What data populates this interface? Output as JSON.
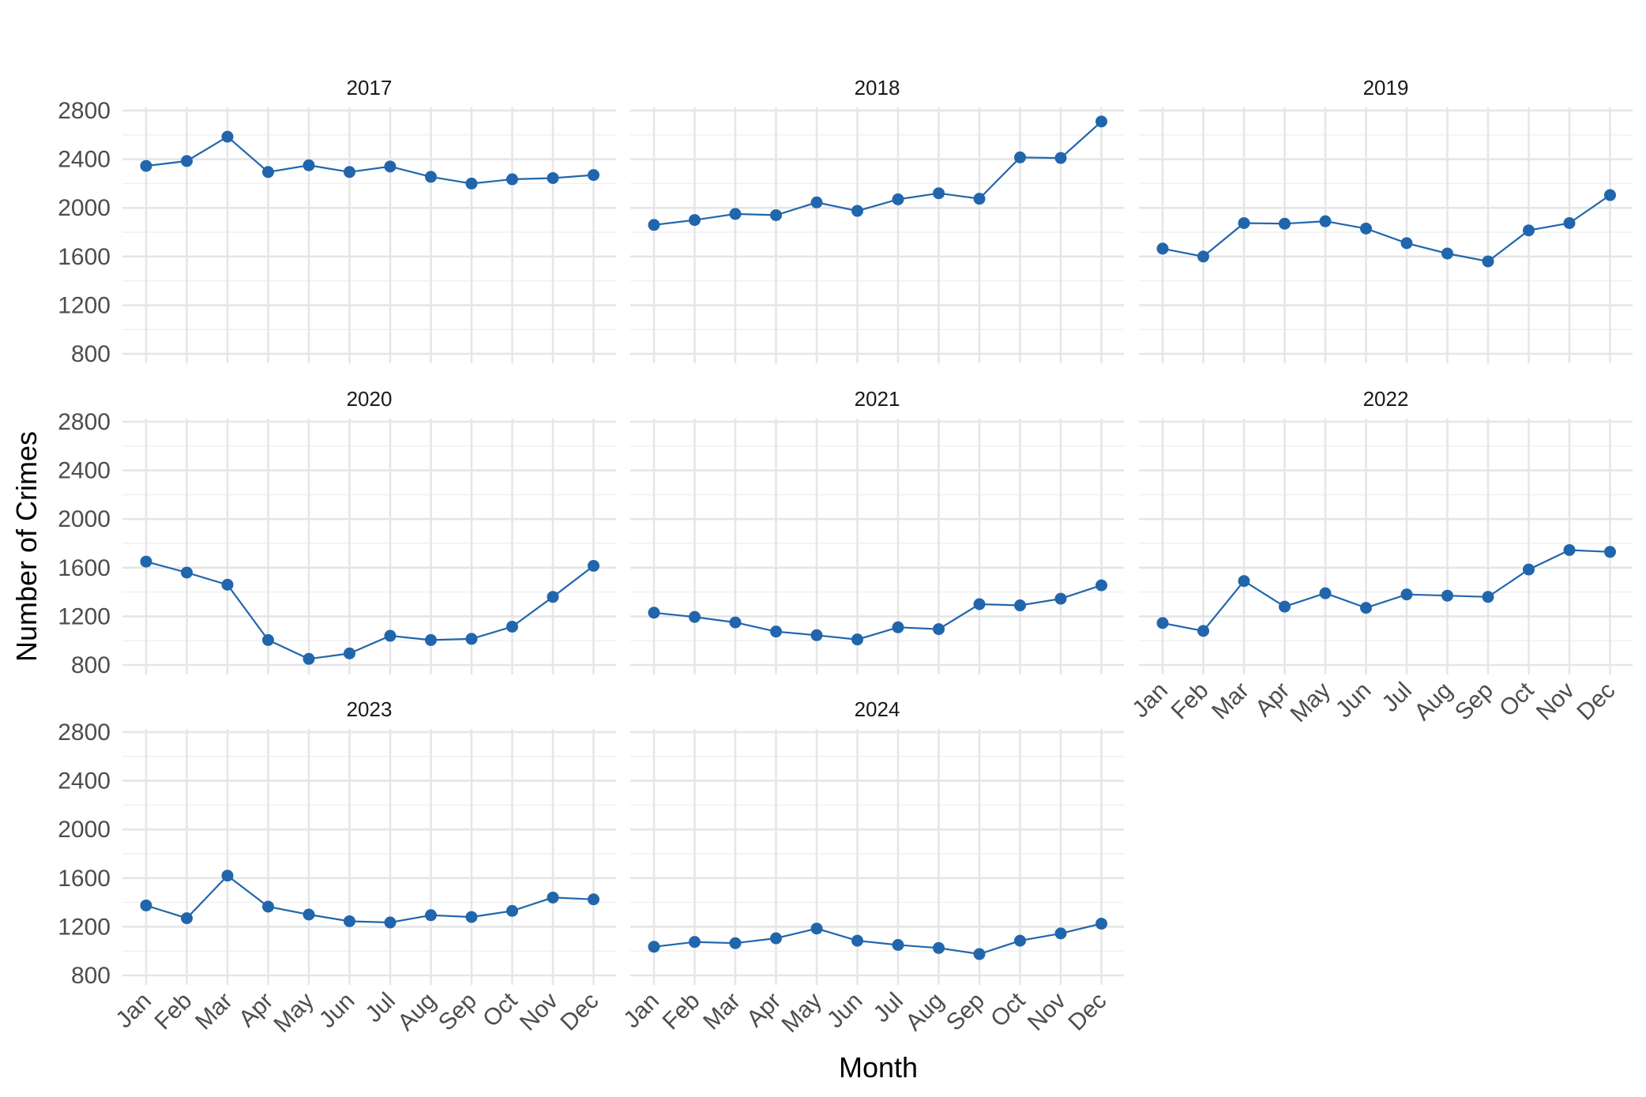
{
  "chart_data": {
    "type": "line",
    "facet_layout": "3x3 grid, facet_wrap by year, shared axes",
    "xlabel": "Month",
    "ylabel": "Number of Crimes",
    "categories": [
      "Jan",
      "Feb",
      "Mar",
      "Apr",
      "May",
      "Jun",
      "Jul",
      "Aug",
      "Sep",
      "Oct",
      "Nov",
      "Dec"
    ],
    "ylim": [
      800,
      2800
    ],
    "yticks": [
      800,
      1200,
      1600,
      2000,
      2400,
      2800
    ],
    "grid": true,
    "legend": "none",
    "color": "#2166ac",
    "panels": [
      {
        "title": "2017",
        "values": [
          2345,
          2385,
          2585,
          2295,
          2350,
          2295,
          2340,
          2255,
          2200,
          2235,
          2245,
          2270
        ]
      },
      {
        "title": "2018",
        "values": [
          1860,
          1900,
          1950,
          1940,
          2045,
          1975,
          2070,
          2120,
          2075,
          2415,
          2410,
          2710
        ]
      },
      {
        "title": "2019",
        "values": [
          1665,
          1600,
          1875,
          1870,
          1890,
          1830,
          1710,
          1625,
          1560,
          1815,
          1875,
          2105
        ]
      },
      {
        "title": "2020",
        "values": [
          1650,
          1560,
          1460,
          1005,
          850,
          895,
          1040,
          1005,
          1015,
          1115,
          1360,
          1615
        ]
      },
      {
        "title": "2021",
        "values": [
          1230,
          1195,
          1150,
          1075,
          1045,
          1010,
          1110,
          1095,
          1300,
          1290,
          1345,
          1455
        ]
      },
      {
        "title": "2022",
        "values": [
          1145,
          1080,
          1490,
          1280,
          1390,
          1270,
          1380,
          1370,
          1360,
          1585,
          1745,
          1730
        ]
      },
      {
        "title": "2023",
        "values": [
          1375,
          1270,
          1620,
          1365,
          1300,
          1245,
          1235,
          1295,
          1280,
          1330,
          1440,
          1425
        ]
      },
      {
        "title": "2024",
        "values": [
          1035,
          1075,
          1065,
          1105,
          1185,
          1085,
          1050,
          1025,
          975,
          1085,
          1145,
          1225
        ]
      }
    ]
  }
}
